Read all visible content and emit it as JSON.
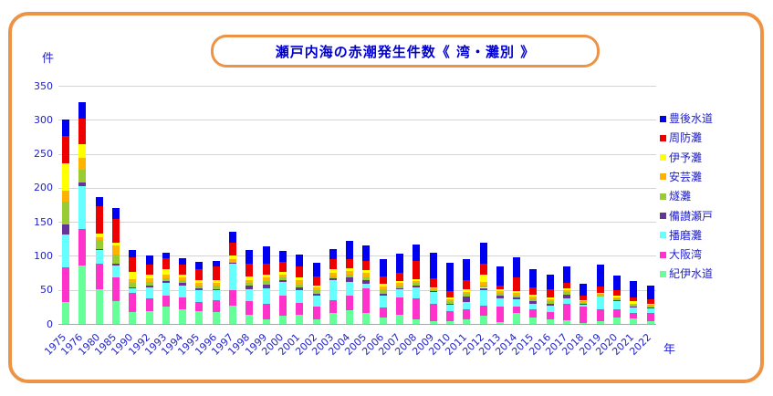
{
  "chart_data": {
    "type": "bar",
    "subtype": "stacked",
    "title": "瀬戸内海の赤潮発生件数《 湾・灘別 》",
    "ylabel": "件",
    "xlabel": "年",
    "ylim": [
      0,
      350
    ],
    "y_ticks": [
      0,
      50,
      100,
      150,
      200,
      250,
      300,
      350
    ],
    "grid": true,
    "legend_position": "right",
    "legend_order": "top legend entry is top of stack",
    "categories": [
      "1975",
      "1976",
      "1980",
      "1985",
      "1990",
      "1992",
      "1993",
      "1994",
      "1995",
      "1996",
      "1997",
      "1998",
      "1999",
      "2000",
      "2001",
      "2002",
      "2003",
      "2004",
      "2005",
      "2006",
      "2007",
      "2008",
      "2009",
      "2010",
      "2011",
      "2012",
      "2013",
      "2014",
      "2015",
      "2016",
      "2017",
      "2018",
      "2019",
      "2020",
      "2021",
      "2022"
    ],
    "series_note": "listed bottom-of-stack first; values estimated from pixels",
    "series": [
      {
        "name": "紀伊水道",
        "key": "kii-suido",
        "color": "#66FF99",
        "values": [
          32,
          86,
          51,
          34,
          18,
          19,
          25,
          21,
          19,
          18,
          27,
          13,
          7,
          12,
          13,
          7,
          16,
          20,
          16,
          10,
          13,
          7,
          4,
          4,
          7,
          12,
          3,
          16,
          10,
          7,
          6,
          2,
          4,
          10,
          8,
          4
        ]
      },
      {
        "name": "大阪湾",
        "key": "osaka-wan",
        "color": "#FF33CC",
        "values": [
          51,
          54,
          37,
          34,
          27,
          18,
          17,
          18,
          13,
          17,
          22,
          21,
          22,
          29,
          18,
          19,
          19,
          22,
          36,
          14,
          26,
          30,
          26,
          15,
          15,
          15,
          22,
          10,
          11,
          11,
          24,
          24,
          18,
          12,
          8,
          12
        ]
      },
      {
        "name": "播磨灘",
        "key": "harima-nada",
        "color": "#66FFFF",
        "values": [
          48,
          62,
          20,
          18,
          7,
          17,
          19,
          18,
          18,
          14,
          40,
          17,
          23,
          21,
          19,
          15,
          30,
          20,
          7,
          17,
          12,
          17,
          17,
          9,
          10,
          22,
          13,
          10,
          9,
          9,
          8,
          2,
          18,
          11,
          9,
          7
        ]
      },
      {
        "name": "備讃瀬戸",
        "key": "bisan-seto",
        "color": "#663399",
        "values": [
          15,
          6,
          2,
          2,
          2,
          3,
          2,
          3,
          2,
          2,
          1,
          5,
          6,
          3,
          3,
          3,
          2,
          6,
          5,
          3,
          1,
          2,
          1,
          2,
          8,
          4,
          4,
          3,
          4,
          3,
          5,
          1,
          1,
          2,
          1,
          2
        ]
      },
      {
        "name": "燧灘",
        "key": "hiuchi-nada",
        "color": "#99CC33",
        "values": [
          34,
          18,
          14,
          14,
          6,
          5,
          4,
          5,
          4,
          5,
          1,
          4,
          5,
          4,
          5,
          6,
          3,
          5,
          5,
          7,
          4,
          4,
          2,
          3,
          4,
          3,
          3,
          3,
          3,
          3,
          4,
          2,
          1,
          2,
          2,
          1
        ]
      },
      {
        "name": "安芸灘",
        "key": "aki-nada",
        "color": "#FFB300",
        "values": [
          16,
          18,
          3,
          14,
          6,
          5,
          5,
          4,
          5,
          4,
          4,
          5,
          5,
          4,
          7,
          3,
          5,
          5,
          6,
          4,
          4,
          3,
          2,
          3,
          3,
          6,
          3,
          3,
          3,
          3,
          2,
          2,
          2,
          2,
          2,
          2
        ]
      },
      {
        "name": "伊予灘",
        "key": "iyo-nada",
        "color": "#FFFF00",
        "values": [
          40,
          20,
          6,
          4,
          10,
          5,
          8,
          4,
          3,
          4,
          5,
          5,
          5,
          4,
          4,
          3,
          5,
          4,
          4,
          4,
          3,
          3,
          2,
          3,
          4,
          10,
          3,
          3,
          3,
          3,
          3,
          2,
          2,
          3,
          3,
          2
        ]
      },
      {
        "name": "周防灘",
        "key": "suo-nada",
        "color": "#EE0000",
        "values": [
          40,
          38,
          40,
          34,
          22,
          15,
          16,
          14,
          17,
          21,
          20,
          19,
          16,
          14,
          15,
          14,
          15,
          13,
          14,
          11,
          12,
          26,
          13,
          9,
          13,
          17,
          6,
          21,
          11,
          12,
          8,
          7,
          9,
          8,
          6,
          6
        ]
      },
      {
        "name": "豊後水道",
        "key": "bungo-suido",
        "color": "#0000F0",
        "values": [
          24,
          24,
          14,
          16,
          10,
          13,
          9,
          10,
          10,
          8,
          15,
          20,
          25,
          16,
          18,
          20,
          15,
          27,
          23,
          25,
          28,
          25,
          37,
          42,
          31,
          31,
          27,
          29,
          26,
          22,
          25,
          17,
          32,
          21,
          24,
          21
        ]
      }
    ],
    "totals": [
      300,
      326,
      187,
      170,
      108,
      100,
      105,
      97,
      91,
      93,
      135,
      109,
      114,
      107,
      102,
      90,
      110,
      122,
      116,
      95,
      103,
      117,
      104,
      90,
      95,
      120,
      84,
      98,
      80,
      73,
      85,
      59,
      87,
      71,
      63,
      57
    ]
  },
  "colors": {
    "frame_orange": "#ED9346",
    "title_blue": "#0000CC",
    "text_blue": "#2222CC",
    "gridline": "#D4D4D4",
    "axis_line": "#A8A8A8"
  }
}
